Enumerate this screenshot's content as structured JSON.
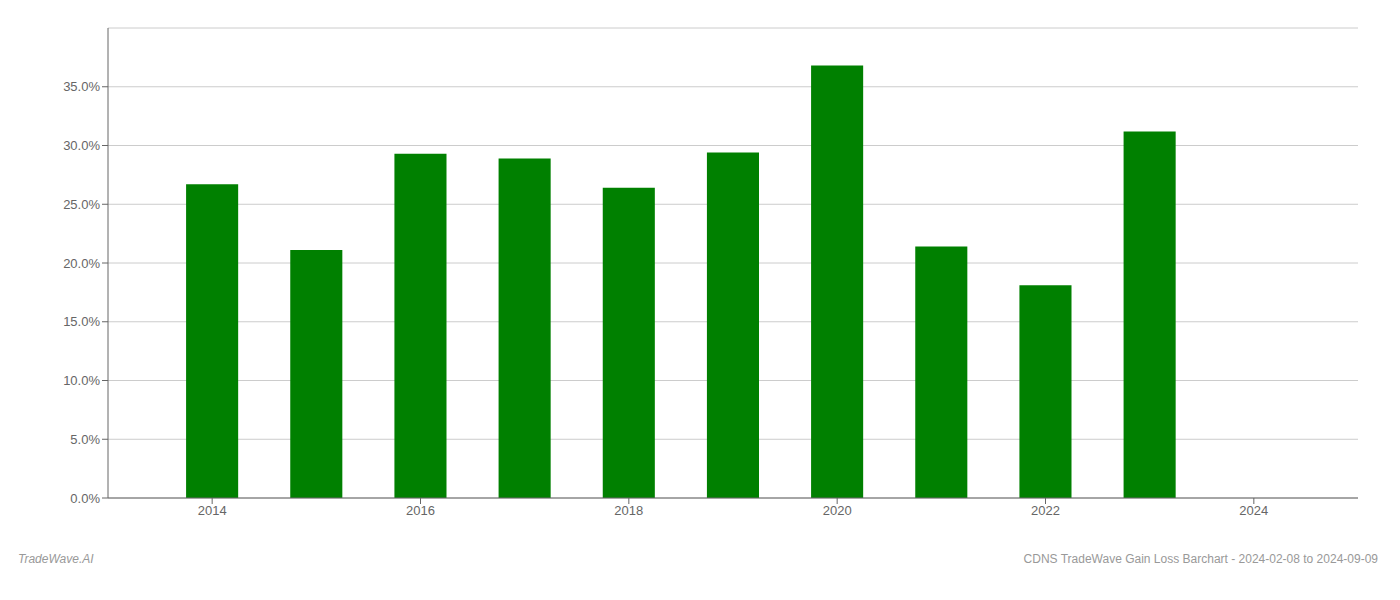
{
  "chart_data": {
    "type": "bar",
    "x": [
      2014,
      2015,
      2016,
      2017,
      2018,
      2019,
      2020,
      2021,
      2022,
      2023
    ],
    "values": [
      0.267,
      0.211,
      0.293,
      0.289,
      0.264,
      0.294,
      0.368,
      0.214,
      0.181,
      0.312
    ],
    "color": "#008000",
    "xlim": [
      2013,
      2025
    ],
    "xticks": [
      2014,
      2016,
      2018,
      2020,
      2022,
      2024
    ],
    "ylim": [
      0,
      0.4
    ],
    "yticks": [
      {
        "value": 0.0,
        "label": "0.0%"
      },
      {
        "value": 0.05,
        "label": "5.0%"
      },
      {
        "value": 0.1,
        "label": "10.0%"
      },
      {
        "value": 0.15,
        "label": "15.0%"
      },
      {
        "value": 0.2,
        "label": "20.0%"
      },
      {
        "value": 0.25,
        "label": "25.0%"
      },
      {
        "value": 0.3,
        "label": "30.0%"
      },
      {
        "value": 0.35,
        "label": "35.0%"
      }
    ],
    "grid": true,
    "annotations": [
      "TradeWave.AI",
      "CDNS TradeWave Gain Loss Barchart - 2024-02-08 to 2024-09-09"
    ]
  }
}
